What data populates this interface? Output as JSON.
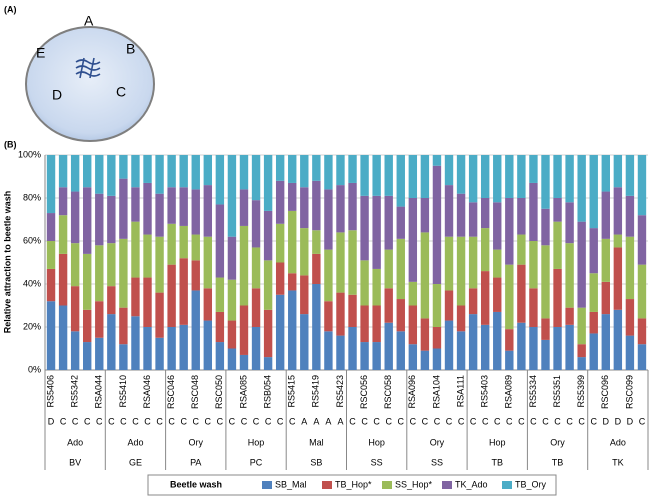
{
  "panels": {
    "a": "(A)",
    "b": "(B)"
  },
  "dish_labels": [
    "A",
    "B",
    "C",
    "D",
    "E"
  ],
  "chart_data": {
    "type": "stacked_bar",
    "ylabel": "Relative attraction to beetle wash",
    "ylim": [
      0,
      100
    ],
    "yticks": [
      {
        "value": 0,
        "label": "0%"
      },
      {
        "value": 20,
        "label": "20%"
      },
      {
        "value": 40,
        "label": "40%"
      },
      {
        "value": 60,
        "label": "60%"
      },
      {
        "value": 80,
        "label": "80%"
      },
      {
        "value": 100,
        "label": "100%"
      }
    ],
    "grid": true,
    "legend_title": "Beetle wash",
    "legend": "bottom",
    "categories": [
      "RS5406",
      null,
      "RS5342",
      null,
      "RSA044",
      null,
      "RS5410",
      null,
      "RSA046",
      null,
      "RSC046",
      null,
      "RSC048",
      null,
      "RSC050",
      null,
      "RSA085",
      null,
      "RSB054",
      null,
      "RS5415",
      null,
      "RS5419",
      null,
      "RS5423",
      null,
      "RSC056",
      null,
      "RSC058",
      null,
      "RSA096",
      null,
      "RSA104",
      null,
      "RSA111",
      null,
      "RS5403",
      null,
      "RSA089",
      null,
      "RS5334",
      null,
      "RS5351",
      null,
      "RS5399",
      null,
      "RSC096",
      null,
      "RSC099",
      null
    ],
    "sources": [
      "D",
      "C",
      "C",
      "C",
      "C",
      "C",
      "C",
      "C",
      "C",
      "C",
      "C",
      "C",
      "C",
      "C",
      "C",
      "C",
      "C",
      "C",
      "C",
      "C",
      "C",
      "A",
      "A",
      "A",
      "A",
      "C",
      "C",
      "C",
      "C",
      "C",
      "C",
      "C",
      "C",
      "C",
      "C",
      "C",
      "C",
      "C",
      "C",
      "C",
      "C",
      "C",
      "C",
      "C",
      "C",
      "C",
      "D",
      "D",
      "D",
      "C"
    ],
    "groups": [
      {
        "host": "Ado",
        "name": "BV"
      },
      {
        "host": "Ado",
        "name": "GE"
      },
      {
        "host": "Ory",
        "name": "PA"
      },
      {
        "host": "Hop",
        "name": "PC"
      },
      {
        "host": "Mal",
        "name": "SB"
      },
      {
        "host": "Hop",
        "name": "SS"
      },
      {
        "host": "Ory",
        "name": "SS"
      },
      {
        "host": "Hop",
        "name": "TB"
      },
      {
        "host": "Ory",
        "name": "TB"
      },
      {
        "host": "Ado",
        "name": "TK"
      }
    ],
    "series": [
      {
        "name": "SB_Mal",
        "color": "#4f81bd",
        "values": [
          32,
          30,
          18,
          13,
          15,
          26,
          12,
          25,
          20,
          15,
          20,
          21,
          37,
          23,
          13,
          10,
          7,
          20,
          6,
          35,
          37,
          26,
          40,
          18,
          16,
          20,
          13,
          13,
          22,
          18,
          12,
          9,
          10,
          23,
          18,
          26,
          21,
          27,
          9,
          22,
          20,
          14,
          20,
          21,
          6,
          17,
          26,
          28,
          16,
          12
        ]
      },
      {
        "name": "TB_Hop*",
        "color": "#c0504d",
        "values": [
          15,
          24,
          21,
          15,
          17,
          13,
          17,
          18,
          23,
          21,
          29,
          31,
          14,
          15,
          14,
          13,
          23,
          18,
          22,
          15,
          8,
          18,
          14,
          14,
          20,
          15,
          17,
          17,
          16,
          15,
          18,
          15,
          10,
          14,
          12,
          12,
          25,
          16,
          10,
          27,
          18,
          10,
          27,
          8,
          6,
          10,
          15,
          29,
          17,
          12
        ]
      },
      {
        "name": "SS_Hop*",
        "color": "#9bbb59",
        "values": [
          13,
          18,
          20,
          26,
          26,
          20,
          32,
          26,
          20,
          26,
          19,
          15,
          12,
          24,
          16,
          19,
          37,
          19,
          23,
          18,
          29,
          22,
          11,
          24,
          28,
          30,
          21,
          17,
          18,
          28,
          11,
          40,
          20,
          25,
          32,
          24,
          20,
          13,
          30,
          14,
          22,
          34,
          22,
          30,
          17,
          18,
          20,
          6,
          29,
          25
        ]
      },
      {
        "name": "TK_Ado",
        "color": "#8064a2",
        "values": [
          13,
          13,
          24,
          31,
          24,
          22,
          28,
          16,
          24,
          20,
          17,
          18,
          21,
          24,
          34,
          20,
          17,
          22,
          23,
          20,
          13,
          19,
          23,
          28,
          22,
          22,
          30,
          34,
          25,
          15,
          39,
          16,
          55,
          24,
          20,
          16,
          14,
          22,
          31,
          17,
          27,
          17,
          11,
          19,
          40,
          21,
          22,
          22,
          19,
          23
        ]
      },
      {
        "name": "TB_Ory",
        "color": "#4bacc6",
        "values": [
          27,
          15,
          17,
          15,
          18,
          19,
          11,
          15,
          13,
          18,
          15,
          15,
          16,
          14,
          23,
          38,
          16,
          21,
          26,
          12,
          13,
          15,
          12,
          16,
          14,
          13,
          19,
          19,
          19,
          24,
          20,
          20,
          5,
          14,
          18,
          22,
          20,
          22,
          20,
          20,
          13,
          25,
          20,
          22,
          31,
          34,
          17,
          15,
          19,
          28
        ]
      }
    ]
  }
}
